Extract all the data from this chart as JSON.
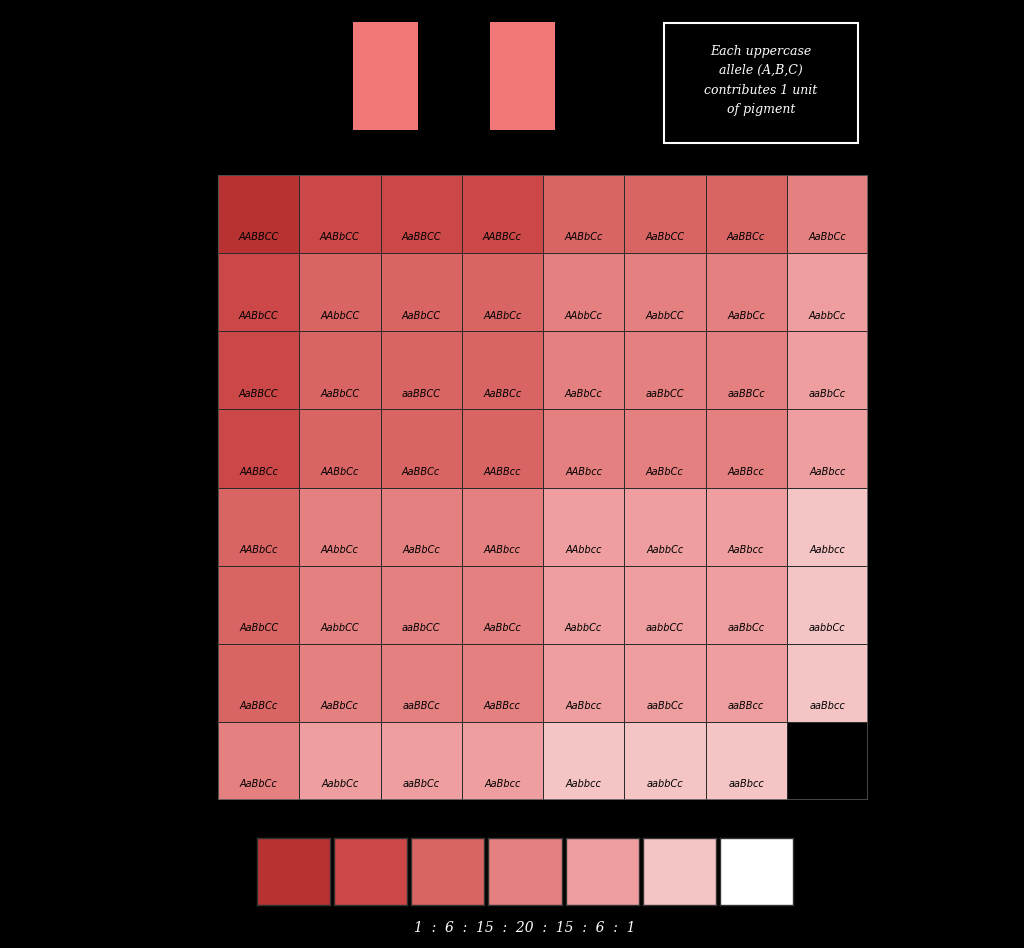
{
  "background_color": "#000000",
  "color_map": {
    "6": "#b83232",
    "5": "#cc4848",
    "4": "#d96464",
    "3": "#e58080",
    "2": "#ee9e9e",
    "1": "#f5c4c4",
    "0": "#ffffff"
  },
  "parent_color": "#f07878",
  "note_text": "Each uppercase\nallele (A,B,C)\ncontributes 1 unit\nof pigment",
  "cells": [
    [
      "AABBCC",
      "AABbCC",
      "AaBBCC",
      "AABBCc",
      "AABbCc",
      "AaBbCC",
      "AaBBCc",
      "AaBbCc"
    ],
    [
      "AABbCC",
      "AAbbCC",
      "AaBbCC",
      "AABbCc",
      "AAbbCc",
      "AabbCC",
      "AaBbCc",
      "AabbCc"
    ],
    [
      "AaBBCC",
      "AaBbCC",
      "aaBBCC",
      "AaBBCc",
      "AaBbCc",
      "aaBbCC",
      "aaBBCc",
      "aaBbCc"
    ],
    [
      "AABBCc",
      "AABbCc",
      "AaBBCc",
      "AABBcc",
      "AABbcc",
      "AaBbCc",
      "AaBBcc",
      "AaBbcc"
    ],
    [
      "AABbCc",
      "AAbbCc",
      "AaBbCc",
      "AABbcc",
      "AAbbcc",
      "AabbCc",
      "AaBbcc",
      "Aabbcc"
    ],
    [
      "AaBbCC",
      "AabbCC",
      "aaBbCC",
      "AaBbCc",
      "AabbCc",
      "aabbCC",
      "aaBbCc",
      "aabbCc"
    ],
    [
      "AaBBCc",
      "AaBbCc",
      "aaBBCc",
      "AaBBcc",
      "AaBbcc",
      "aaBbCc",
      "aaBBcc",
      "aaBbcc"
    ],
    [
      "AaBbCc",
      "AabbCc",
      "aaBbCc",
      "AaBbcc",
      "Aabbcc",
      "aabbCc",
      "aaBbcc",
      ""
    ]
  ],
  "legend_colors": [
    "#b83232",
    "#cc4848",
    "#d96464",
    "#e58080",
    "#ee9e9e",
    "#f5c4c4",
    "#ffffff"
  ],
  "figsize": [
    10.24,
    9.48
  ],
  "dpi": 100
}
